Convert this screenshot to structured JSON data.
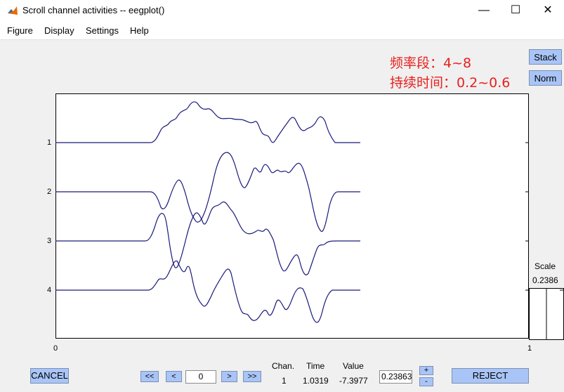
{
  "window": {
    "title": "Scroll channel activities -- eegplot()",
    "minimize": "—",
    "maximize": "☐",
    "close": "✕"
  },
  "menu": {
    "items": [
      "Figure",
      "Display",
      "Settings",
      "Help"
    ]
  },
  "annotation": {
    "line1": "频率段：4~8",
    "line2": "持续时间：0.2~0.6",
    "color": "#e8201e"
  },
  "side_buttons": {
    "stack": "Stack",
    "norm": "Norm"
  },
  "scale": {
    "label": "Scale",
    "value": "0.2386"
  },
  "plot": {
    "channel_labels": [
      "1",
      "2",
      "3",
      "4"
    ],
    "x_tick_left": "0",
    "x_tick_right": "1",
    "line_color": "#1a1a7a"
  },
  "controls": {
    "cancel": "CANCEL",
    "nav": {
      "first": "<<",
      "prev": "<",
      "position": "0",
      "next": ">",
      "last": ">>"
    },
    "info_headers": {
      "chan": "Chan.",
      "time": "Time",
      "value": "Value"
    },
    "info_values": {
      "chan": "1",
      "time": "1.0319",
      "value": "-7.3977"
    },
    "scale_input": "0.23863",
    "plus": "+",
    "minus": "-",
    "reject": "REJECT"
  }
}
